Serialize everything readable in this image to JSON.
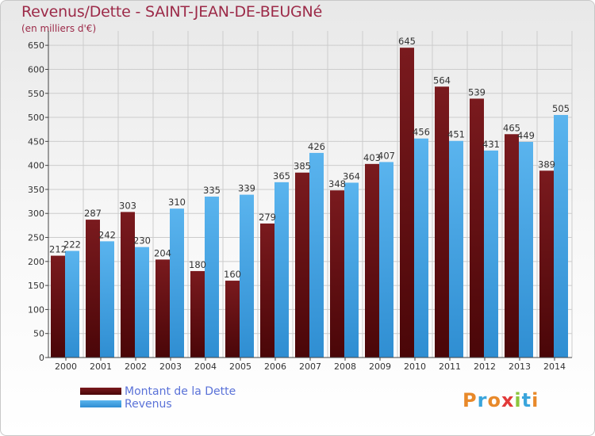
{
  "title": "Revenus/Dette - SAINT-JEAN-DE-BEUGNé",
  "subtitle": "(en milliers d'€)",
  "logo": [
    "P",
    "r",
    "o",
    "x",
    "i",
    "t",
    "i"
  ],
  "logo_colors": [
    "#e8892a",
    "#3aa5dc",
    "#e8892a",
    "#e23a3a",
    "#8cc63f",
    "#3aa5dc",
    "#e8892a"
  ],
  "legend": {
    "debt_label": "Montant de la Dette",
    "revenue_label": "Revenus"
  },
  "colors": {
    "debt": "#7a1a1e",
    "debt_dark": "#4a0608",
    "revenue": "#5ab4ee",
    "revenue_dark": "#2f8ed2",
    "grid": "#cccccc",
    "axis": "#444444"
  },
  "chart_data": {
    "type": "bar",
    "title": "Revenus/Dette - SAINT-JEAN-DE-BEUGNé",
    "subtitle": "(en milliers d'€)",
    "categories": [
      "2000",
      "2001",
      "2002",
      "2003",
      "2004",
      "2005",
      "2006",
      "2007",
      "2008",
      "2009",
      "2010",
      "2011",
      "2012",
      "2013",
      "2014"
    ],
    "series": [
      {
        "name": "Montant de la Dette",
        "values": [
          212,
          287,
          303,
          204,
          180,
          160,
          279,
          385,
          348,
          403,
          645,
          564,
          539,
          465,
          389
        ]
      },
      {
        "name": "Revenus",
        "values": [
          222,
          242,
          230,
          310,
          335,
          339,
          365,
          426,
          364,
          407,
          456,
          451,
          431,
          449,
          505
        ]
      }
    ],
    "yticks": [
      0,
      50,
      100,
      150,
      200,
      250,
      300,
      350,
      400,
      450,
      500,
      550,
      600,
      650
    ],
    "ylim": [
      0,
      680
    ],
    "grid": true,
    "legend_position": "bottom-left"
  }
}
